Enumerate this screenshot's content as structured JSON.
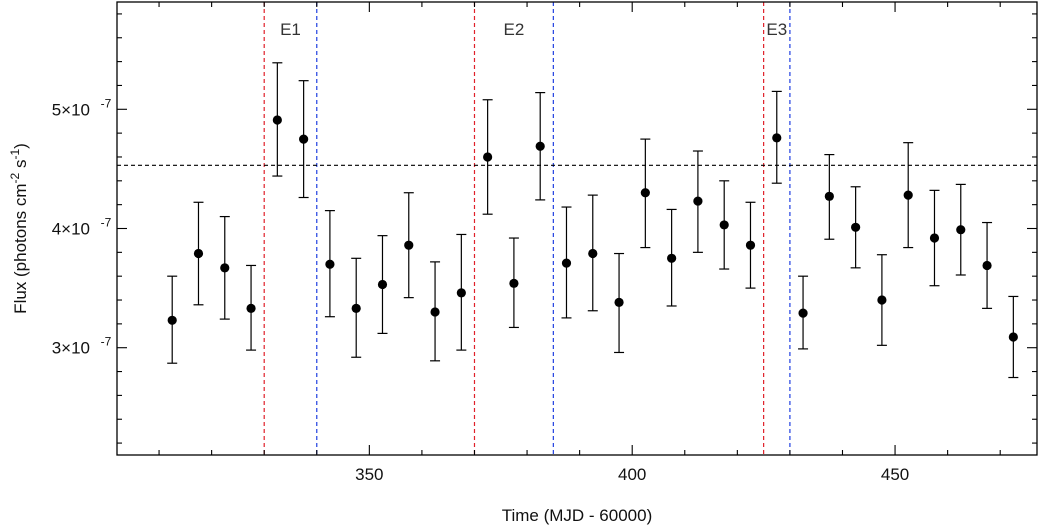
{
  "chart_data": {
    "type": "scatter",
    "title": "",
    "xlabel": "Time (MJD - 60000)",
    "ylabel_parts": [
      "Flux (photons cm",
      "-2",
      " s",
      "-1",
      ")"
    ],
    "xlim": [
      302,
      477
    ],
    "ylim": [
      2.1e-07,
      5.9e-07
    ],
    "x_ticks": [
      350,
      400,
      450
    ],
    "x_tick_labels": [
      "350",
      "400",
      "450"
    ],
    "y_ticks": [
      3e-07,
      4e-07,
      5e-07
    ],
    "y_tick_labels": [
      {
        "mant": "3×10",
        "exp": "-7"
      },
      {
        "mant": "4×10",
        "exp": "-7"
      },
      {
        "mant": "5×10",
        "exp": "-7"
      }
    ],
    "grid": false,
    "reference_line": {
      "y": 4.53e-07,
      "color": "#000000",
      "style": "dashed"
    },
    "points": [
      {
        "x": 312.5,
        "y": 3.23e-07,
        "lo": 2.87e-07,
        "hi": 3.6e-07
      },
      {
        "x": 317.5,
        "y": 3.79e-07,
        "lo": 3.36e-07,
        "hi": 4.22e-07
      },
      {
        "x": 322.5,
        "y": 3.67e-07,
        "lo": 3.24e-07,
        "hi": 4.1e-07
      },
      {
        "x": 327.5,
        "y": 3.33e-07,
        "lo": 2.98e-07,
        "hi": 3.69e-07
      },
      {
        "x": 332.5,
        "y": 4.91e-07,
        "lo": 4.44e-07,
        "hi": 5.39e-07
      },
      {
        "x": 337.5,
        "y": 4.75e-07,
        "lo": 4.26e-07,
        "hi": 5.24e-07
      },
      {
        "x": 342.5,
        "y": 3.7e-07,
        "lo": 3.26e-07,
        "hi": 4.15e-07
      },
      {
        "x": 347.5,
        "y": 3.33e-07,
        "lo": 2.92e-07,
        "hi": 3.75e-07
      },
      {
        "x": 352.5,
        "y": 3.53e-07,
        "lo": 3.12e-07,
        "hi": 3.94e-07
      },
      {
        "x": 357.5,
        "y": 3.86e-07,
        "lo": 3.42e-07,
        "hi": 4.3e-07
      },
      {
        "x": 362.5,
        "y": 3.3e-07,
        "lo": 2.89e-07,
        "hi": 3.72e-07
      },
      {
        "x": 367.5,
        "y": 3.46e-07,
        "lo": 2.98e-07,
        "hi": 3.95e-07
      },
      {
        "x": 372.5,
        "y": 4.6e-07,
        "lo": 4.12e-07,
        "hi": 5.08e-07
      },
      {
        "x": 377.5,
        "y": 3.54e-07,
        "lo": 3.17e-07,
        "hi": 3.92e-07
      },
      {
        "x": 382.5,
        "y": 4.69e-07,
        "lo": 4.24e-07,
        "hi": 5.14e-07
      },
      {
        "x": 387.5,
        "y": 3.71e-07,
        "lo": 3.25e-07,
        "hi": 4.18e-07
      },
      {
        "x": 392.5,
        "y": 3.79e-07,
        "lo": 3.31e-07,
        "hi": 4.28e-07
      },
      {
        "x": 397.5,
        "y": 3.38e-07,
        "lo": 2.96e-07,
        "hi": 3.79e-07
      },
      {
        "x": 402.5,
        "y": 4.3e-07,
        "lo": 3.84e-07,
        "hi": 4.75e-07
      },
      {
        "x": 407.5,
        "y": 3.75e-07,
        "lo": 3.35e-07,
        "hi": 4.16e-07
      },
      {
        "x": 412.5,
        "y": 4.23e-07,
        "lo": 3.8e-07,
        "hi": 4.65e-07
      },
      {
        "x": 417.5,
        "y": 4.03e-07,
        "lo": 3.66e-07,
        "hi": 4.4e-07
      },
      {
        "x": 422.5,
        "y": 3.86e-07,
        "lo": 3.5e-07,
        "hi": 4.22e-07
      },
      {
        "x": 427.5,
        "y": 4.76e-07,
        "lo": 4.38e-07,
        "hi": 5.15e-07
      },
      {
        "x": 432.5,
        "y": 3.29e-07,
        "lo": 2.99e-07,
        "hi": 3.6e-07
      },
      {
        "x": 437.5,
        "y": 4.27e-07,
        "lo": 3.91e-07,
        "hi": 4.62e-07
      },
      {
        "x": 442.5,
        "y": 4.01e-07,
        "lo": 3.67e-07,
        "hi": 4.35e-07
      },
      {
        "x": 447.5,
        "y": 3.4e-07,
        "lo": 3.02e-07,
        "hi": 3.78e-07
      },
      {
        "x": 452.5,
        "y": 4.28e-07,
        "lo": 3.84e-07,
        "hi": 4.72e-07
      },
      {
        "x": 457.5,
        "y": 3.92e-07,
        "lo": 3.52e-07,
        "hi": 4.32e-07
      },
      {
        "x": 462.5,
        "y": 3.99e-07,
        "lo": 3.61e-07,
        "hi": 4.37e-07
      },
      {
        "x": 467.5,
        "y": 3.69e-07,
        "lo": 3.33e-07,
        "hi": 4.05e-07
      },
      {
        "x": 472.5,
        "y": 3.09e-07,
        "lo": 2.75e-07,
        "hi": 3.43e-07
      }
    ],
    "events": [
      {
        "label": "E1",
        "start": 330,
        "end": 340
      },
      {
        "label": "E2",
        "start": 370,
        "end": 385
      },
      {
        "label": "E3",
        "start": 425,
        "end": 430
      }
    ],
    "colors": {
      "points": "#000000",
      "event_start": "#e0202a",
      "event_end": "#1f3fe0",
      "axis": "#000000"
    }
  }
}
